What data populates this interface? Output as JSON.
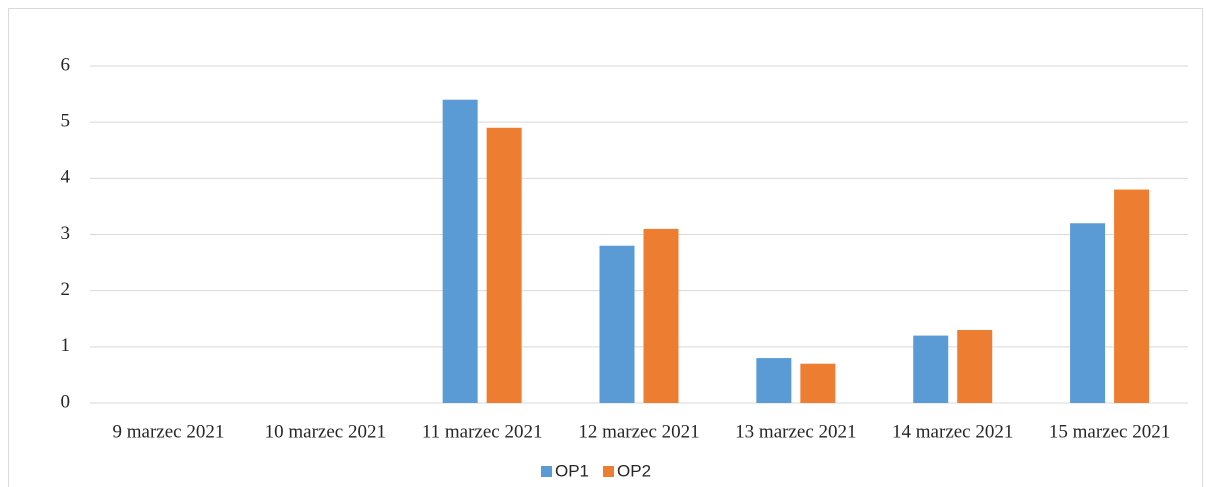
{
  "chart_data": {
    "type": "bar",
    "categories": [
      "9 marzec 2021",
      "10 marzec 2021",
      "11 marzec 2021",
      "12 marzec 2021",
      "13 marzec 2021",
      "14 marzec 2021",
      "15 marzec 2021"
    ],
    "series": [
      {
        "name": "OP1",
        "color": "#5b9bd5",
        "values": [
          0,
          0,
          5.4,
          2.8,
          0.8,
          1.2,
          3.2
        ]
      },
      {
        "name": "OP2",
        "color": "#ed7d31",
        "values": [
          0,
          0,
          4.9,
          3.1,
          0.7,
          1.3,
          3.8
        ]
      }
    ],
    "ylim": [
      0,
      6
    ],
    "yticks": [
      0,
      1,
      2,
      3,
      4,
      5,
      6
    ],
    "grid": true,
    "legend": "bottom"
  }
}
